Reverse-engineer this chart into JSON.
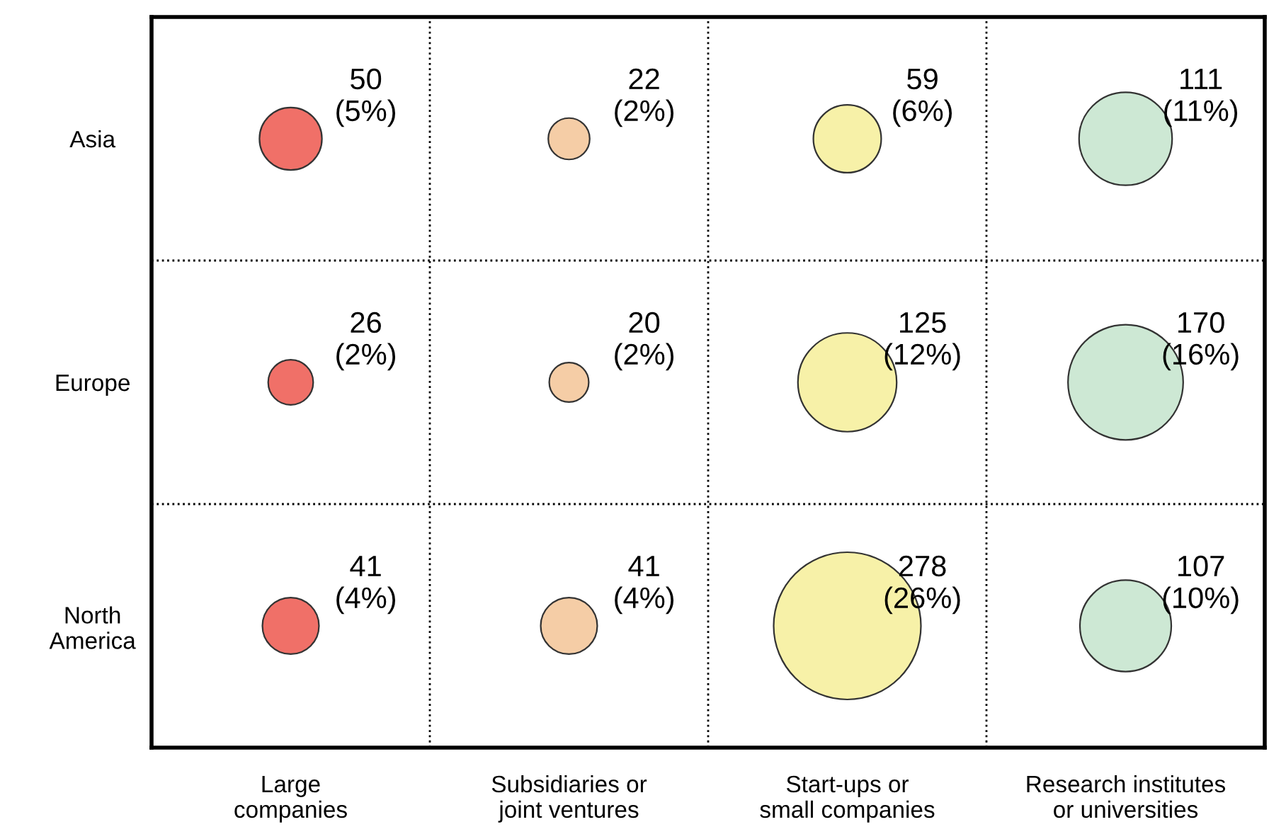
{
  "chart_data": {
    "type": "other",
    "categories": [
      "Large\ncompanies",
      "Subsidiaries or\njoint ventures",
      "Start-ups or\nsmall companies",
      "Research institutes\nor universities"
    ],
    "series": [
      {
        "name": "Asia",
        "colors": [
          "#f07068",
          "#f5cda6",
          "#f7f1a8",
          "#cde8d4"
        ],
        "values": [
          50,
          22,
          59,
          111
        ],
        "value_labels": [
          "50\n(5%)",
          "22\n(2%)",
          "59\n(6%)",
          "111\n(11%)"
        ]
      },
      {
        "name": "Europe",
        "colors": [
          "#f07068",
          "#f5cda6",
          "#f7f1a8",
          "#cde8d4"
        ],
        "values": [
          26,
          20,
          125,
          170
        ],
        "value_labels": [
          "26\n(2%)",
          "20\n(2%)",
          "125\n(12%)",
          "170\n(16%)"
        ]
      },
      {
        "name": "North\nAmerica",
        "colors": [
          "#f07068",
          "#f5cda6",
          "#f7f1a8",
          "#cde8d4"
        ],
        "values": [
          41,
          41,
          278,
          107
        ],
        "value_labels": [
          "41\n(4%)",
          "41\n(4%)",
          "278\n(26%)",
          "107\n(10%)"
        ]
      }
    ]
  }
}
